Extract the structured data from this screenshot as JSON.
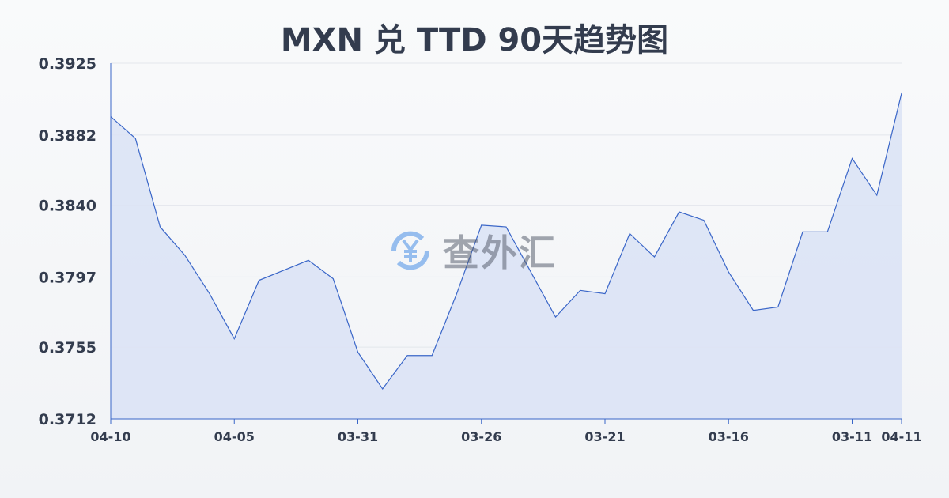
{
  "chart_data": {
    "type": "area",
    "title": "MXN 兑 TTD 90天趋势图",
    "xlabel": "",
    "ylabel": "",
    "ylim": [
      0.3712,
      0.3925
    ],
    "yticks": [
      "0.3925",
      "0.3882",
      "0.3840",
      "0.3797",
      "0.3755",
      "0.3712"
    ],
    "xticks": [
      {
        "index": 0,
        "label": "04-10"
      },
      {
        "index": 5,
        "label": "04-05"
      },
      {
        "index": 10,
        "label": "03-31"
      },
      {
        "index": 15,
        "label": "03-26"
      },
      {
        "index": 20,
        "label": "03-21"
      },
      {
        "index": 25,
        "label": "03-16"
      },
      {
        "index": 30,
        "label": "03-11"
      },
      {
        "index": 32,
        "label": "04-11"
      }
    ],
    "values": [
      0.3893,
      0.388,
      0.3827,
      0.381,
      0.3787,
      0.376,
      0.3795,
      0.3801,
      0.3807,
      0.3796,
      0.3752,
      0.373,
      0.375,
      0.375,
      0.3787,
      0.3828,
      0.3827,
      0.38,
      0.3773,
      0.3789,
      0.3787,
      0.3823,
      0.3809,
      0.3836,
      0.3831,
      0.38,
      0.3777,
      0.3779,
      0.3824,
      0.3824,
      0.3868,
      0.3846,
      0.3907
    ],
    "grid": true,
    "colors": {
      "line": "#3a66c8",
      "fill": "#dbe3f5",
      "grid": "#e3e6ec",
      "text": "#333c4e"
    }
  },
  "watermark": {
    "text": "查外汇",
    "icon": "yen-exchange-icon"
  }
}
